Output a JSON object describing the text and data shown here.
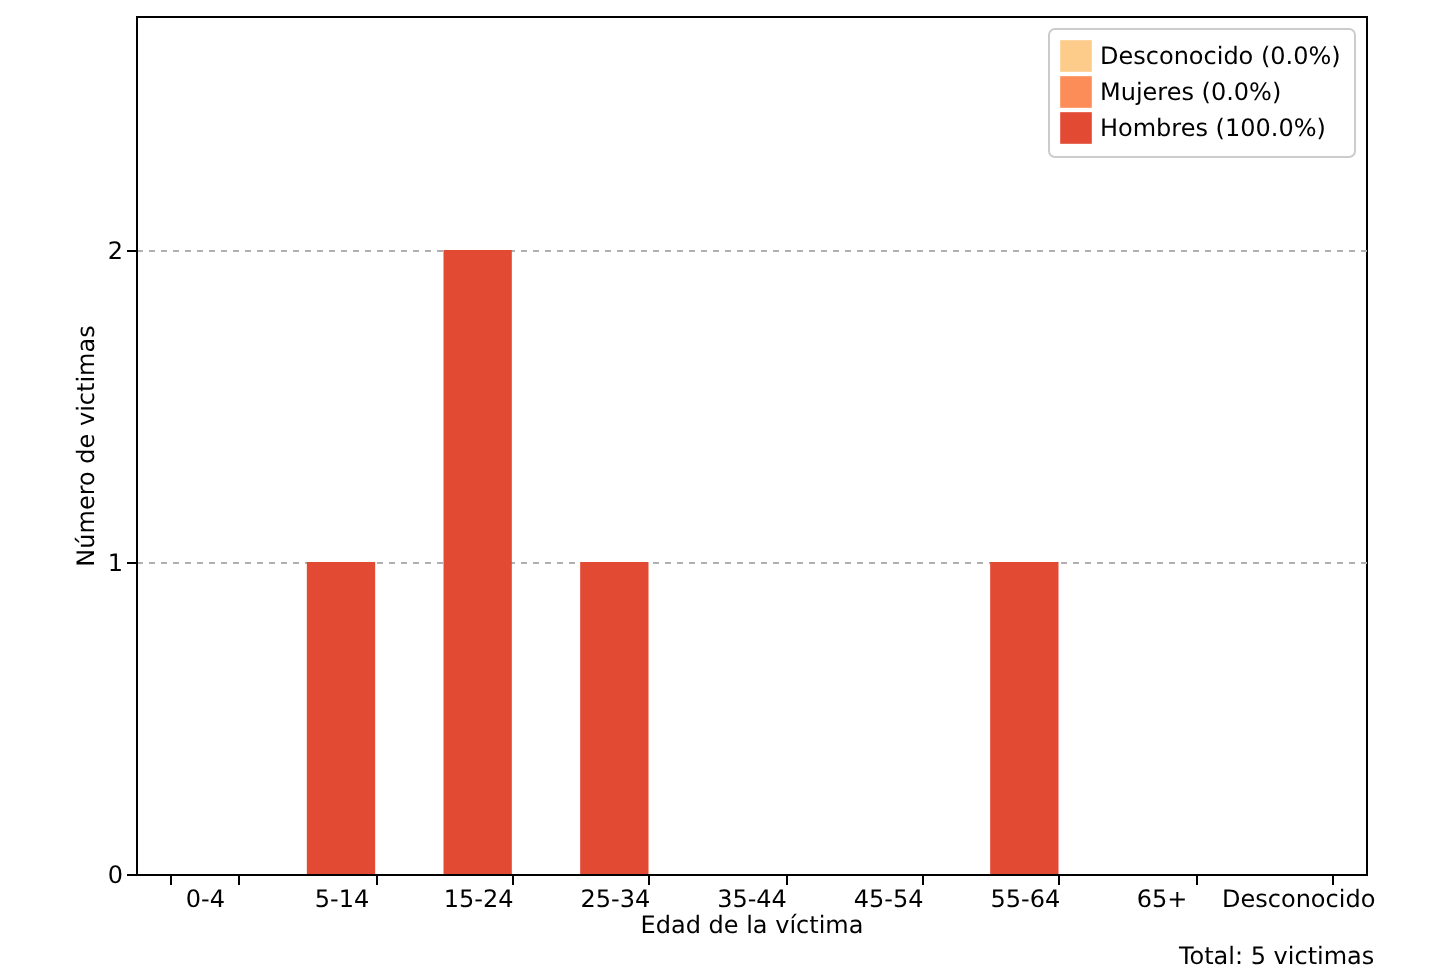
{
  "chart_data": {
    "type": "bar",
    "stacked": true,
    "xlabel": "Edad de la víctima",
    "ylabel": "Número de victimas",
    "categories": [
      "0-4",
      "5-14",
      "15-24",
      "25-34",
      "35-44",
      "45-54",
      "55-64",
      "65+",
      "Desconocido"
    ],
    "series": [
      {
        "name": "Hombres (100.0%)",
        "color": "#e34a33",
        "values": [
          0,
          1,
          2,
          1,
          0,
          0,
          1,
          0,
          0
        ]
      },
      {
        "name": "Mujeres (0.0%)",
        "color": "#fc8d59",
        "values": [
          0,
          0,
          0,
          0,
          0,
          0,
          0,
          0,
          0
        ]
      },
      {
        "name": "Desconocido (0.0%)",
        "color": "#fdcc8a",
        "values": [
          0,
          0,
          0,
          0,
          0,
          0,
          0,
          0,
          0
        ]
      }
    ],
    "ylim": [
      0,
      2.75
    ],
    "yticks": [
      0,
      1,
      2
    ],
    "grid": "y",
    "legend": "top right",
    "annotations": [
      "Total: 5 victimas"
    ]
  }
}
